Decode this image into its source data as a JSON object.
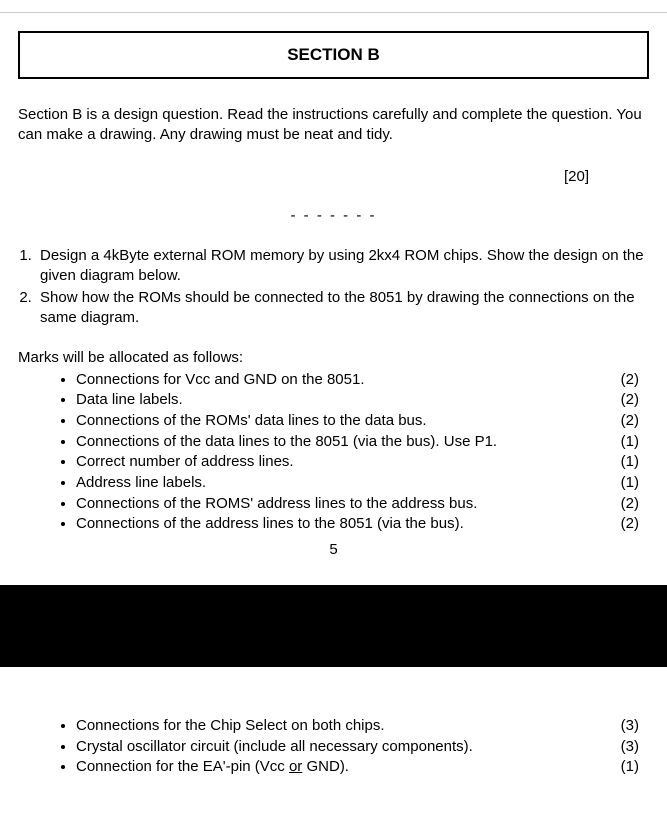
{
  "header": {
    "title": "SECTION B"
  },
  "intro": "Section B is a design question. Read the instructions carefully and complete the question. You can make a drawing. Any drawing must be neat and tidy.",
  "total_marks": "[20]",
  "dashes": "- - - - - - -",
  "questions": {
    "q1": "Design a 4kByte external ROM memory by using 2kx4 ROM chips. Show the design on the given diagram below.",
    "q2": "Show how the ROMs should be connected to the 8051 by drawing the connections on the same diagram."
  },
  "marks_intro": "Marks will be allocated as follows:",
  "bullets_top": [
    {
      "text": "Connections for Vcc and GND on the 8051.",
      "pts": "(2)"
    },
    {
      "text": "Data line labels.",
      "pts": "(2)"
    },
    {
      "text": "Connections of the ROMs' data lines to the data bus.",
      "pts": "(2)"
    },
    {
      "text": "Connections of the data lines to the 8051 (via the bus). Use P1.",
      "pts": "(1)"
    },
    {
      "text": "Correct number of address lines.",
      "pts": "(1)"
    },
    {
      "text": "Address line labels.",
      "pts": "(1)"
    },
    {
      "text": "Connections of the ROMS' address lines to the address bus.",
      "pts": "(2)"
    },
    {
      "text": "Connections of the address lines to the 8051 (via the bus).",
      "pts": "(2)"
    }
  ],
  "page_number": "5",
  "bullets_bottom": [
    {
      "text": "Connections for the Chip Select on both chips.",
      "pts": "(3)"
    },
    {
      "text": "Crystal oscillator circuit (include all necessary components).",
      "pts": "(3)"
    },
    {
      "text_pre": "Connection for the EA'-pin (Vcc ",
      "text_u": "or",
      "text_post": " GND).",
      "pts": "(1)"
    }
  ],
  "colors": {
    "text": "#000000",
    "background": "#ffffff",
    "band": "#000000",
    "top_rule": "#cccccc"
  }
}
